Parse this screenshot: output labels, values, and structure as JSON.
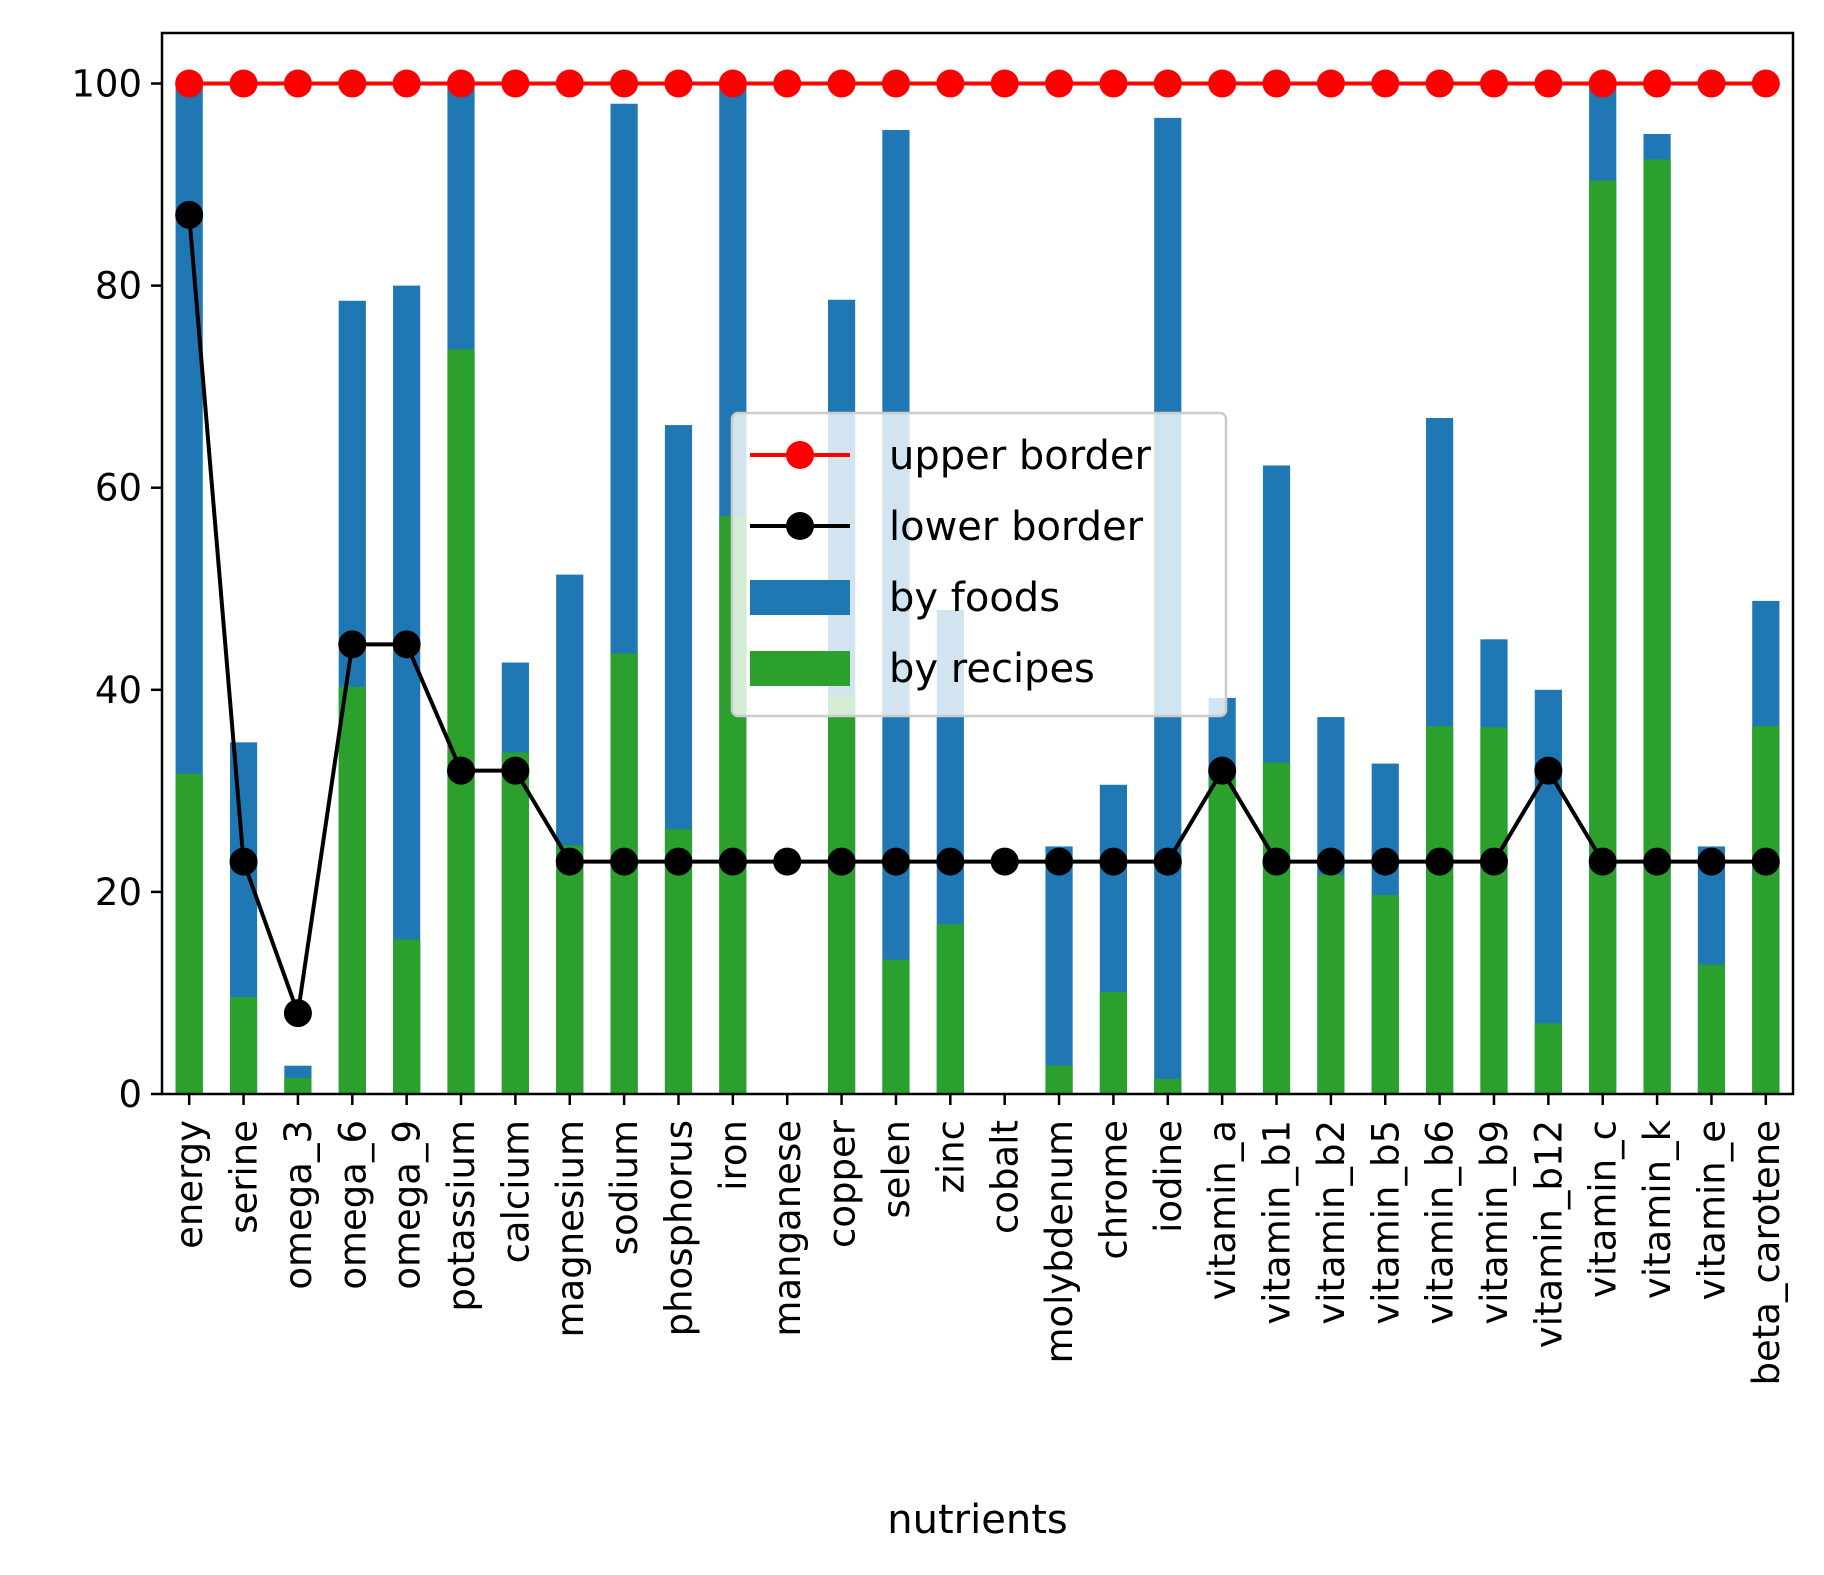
{
  "chart_data": {
    "type": "bar",
    "xlabel": "nutrients",
    "ylabel": "",
    "ylim": [
      0,
      105
    ],
    "yticks": [
      "0",
      "20",
      "40",
      "60",
      "80",
      "100"
    ],
    "grid": false,
    "legend_position": "center",
    "categories": [
      "energy",
      "serine",
      "omega_3",
      "omega_6",
      "omega_9",
      "potassium",
      "calcium",
      "magnesium",
      "sodium",
      "phosphorus",
      "iron",
      "manganese",
      "copper",
      "selen",
      "zinc",
      "cobalt",
      "molybdenum",
      "chrome",
      "iodine",
      "vitamin_a",
      "vitamin_b1",
      "vitamin_b2",
      "vitamin_b5",
      "vitamin_b6",
      "vitamin_b9",
      "vitamin_b12",
      "vitamin_c",
      "vitamin_k",
      "vitamin_e",
      "beta_carotene"
    ],
    "series": [
      {
        "name": "upper border",
        "kind": "line",
        "color": "#ff0000",
        "values": [
          100,
          100,
          100,
          100,
          100,
          100,
          100,
          100,
          100,
          100,
          100,
          100,
          100,
          100,
          100,
          100,
          100,
          100,
          100,
          100,
          100,
          100,
          100,
          100,
          100,
          100,
          100,
          100,
          100,
          100
        ]
      },
      {
        "name": "lower border",
        "kind": "line",
        "color": "#000000",
        "values": [
          87,
          23,
          8,
          44.5,
          44.5,
          32,
          32,
          23,
          23,
          23,
          23,
          23,
          23,
          23,
          23,
          23,
          23,
          23,
          23,
          32,
          23,
          23,
          23,
          23,
          23,
          32,
          23,
          23,
          23,
          23
        ]
      },
      {
        "name": "by foods",
        "kind": "bar",
        "color": "#1f77b4",
        "values": [
          100,
          34.8,
          2.8,
          78.5,
          80,
          100,
          42.7,
          51.4,
          98,
          66.2,
          100,
          0,
          78.6,
          95.4,
          47.9,
          0,
          24.5,
          30.6,
          96.6,
          39.2,
          62.2,
          37.3,
          32.7,
          66.9,
          45,
          40,
          100,
          95,
          24.5,
          48.8
        ]
      },
      {
        "name": "by recipes",
        "kind": "bar",
        "color": "#2ca02c",
        "values": [
          31.7,
          9.6,
          1.6,
          40.3,
          15.3,
          73.7,
          33.8,
          24.6,
          43.6,
          26.2,
          57.2,
          0,
          39.4,
          13.3,
          16.8,
          0,
          2.8,
          10.1,
          1.5,
          31.2,
          32.8,
          21.7,
          19.7,
          36.4,
          36.3,
          7,
          90.4,
          92.5,
          12.8,
          36.4
        ]
      }
    ]
  }
}
